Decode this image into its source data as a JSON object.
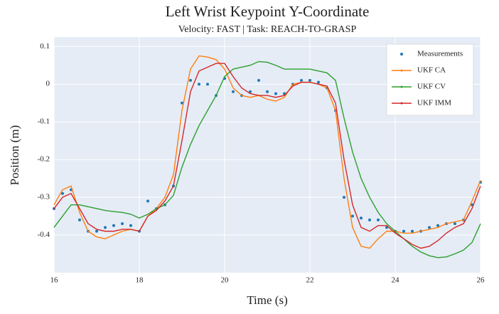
{
  "chart_data": {
    "type": "line",
    "title": "Left Wrist Keypoint Y-Coordinate",
    "subtitle": "Velocity: FAST  |  Task: REACH-TO-GRASP",
    "x_label": "Time (s)",
    "y_label": "Position (m)",
    "x": [
      16.0,
      16.2,
      16.4,
      16.6,
      16.8,
      17.0,
      17.2,
      17.4,
      17.6,
      17.8,
      18.0,
      18.2,
      18.4,
      18.6,
      18.8,
      19.0,
      19.2,
      19.4,
      19.6,
      19.8,
      20.0,
      20.2,
      20.4,
      20.6,
      20.8,
      21.0,
      21.2,
      21.4,
      21.6,
      21.8,
      22.0,
      22.2,
      22.4,
      22.6,
      22.8,
      23.0,
      23.2,
      23.4,
      23.6,
      23.8,
      24.0,
      24.2,
      24.4,
      24.6,
      24.8,
      25.0,
      25.2,
      25.4,
      25.6,
      25.8,
      26.0
    ],
    "series": [
      {
        "name": "Measurements",
        "color": "#1f77b4",
        "mode": "markers",
        "values": [
          -0.33,
          -0.29,
          -0.28,
          -0.36,
          -0.39,
          -0.39,
          -0.38,
          -0.375,
          -0.37,
          -0.375,
          -0.39,
          -0.31,
          -0.33,
          -0.32,
          -0.27,
          -0.05,
          0.01,
          0.0,
          0.0,
          -0.03,
          0.015,
          -0.02,
          -0.03,
          -0.02,
          0.01,
          -0.02,
          -0.025,
          -0.025,
          0.0,
          0.01,
          0.01,
          0.005,
          -0.01,
          -0.07,
          -0.3,
          -0.35,
          -0.355,
          -0.36,
          -0.36,
          -0.38,
          -0.39,
          -0.39,
          -0.39,
          -0.39,
          -0.38,
          -0.375,
          -0.37,
          -0.37,
          -0.36,
          -0.32,
          -0.26
        ]
      },
      {
        "name": "UKF CA",
        "color": "#ff7f0e",
        "mode": "lines",
        "values": [
          -0.32,
          -0.28,
          -0.27,
          -0.34,
          -0.39,
          -0.405,
          -0.41,
          -0.4,
          -0.39,
          -0.385,
          -0.39,
          -0.35,
          -0.33,
          -0.3,
          -0.24,
          -0.07,
          0.04,
          0.075,
          0.072,
          0.065,
          0.04,
          -0.01,
          -0.03,
          -0.035,
          -0.03,
          -0.04,
          -0.045,
          -0.035,
          0.0,
          0.005,
          0.005,
          0.0,
          -0.01,
          -0.07,
          -0.25,
          -0.38,
          -0.43,
          -0.435,
          -0.41,
          -0.39,
          -0.39,
          -0.395,
          -0.395,
          -0.39,
          -0.385,
          -0.38,
          -0.37,
          -0.365,
          -0.36,
          -0.31,
          -0.255
        ]
      },
      {
        "name": "UKF CV",
        "color": "#2ca02c",
        "mode": "lines",
        "values": [
          -0.38,
          -0.35,
          -0.32,
          -0.32,
          -0.325,
          -0.33,
          -0.335,
          -0.338,
          -0.34,
          -0.345,
          -0.355,
          -0.345,
          -0.33,
          -0.32,
          -0.295,
          -0.22,
          -0.16,
          -0.11,
          -0.07,
          -0.03,
          0.02,
          0.04,
          0.045,
          0.05,
          0.06,
          0.058,
          0.05,
          0.04,
          0.04,
          0.04,
          0.04,
          0.035,
          0.03,
          0.01,
          -0.09,
          -0.18,
          -0.25,
          -0.3,
          -0.34,
          -0.37,
          -0.39,
          -0.41,
          -0.43,
          -0.445,
          -0.455,
          -0.46,
          -0.458,
          -0.45,
          -0.44,
          -0.42,
          -0.37
        ]
      },
      {
        "name": "UKF IMM",
        "color": "#d62728",
        "mode": "lines",
        "values": [
          -0.33,
          -0.3,
          -0.29,
          -0.33,
          -0.37,
          -0.385,
          -0.39,
          -0.39,
          -0.385,
          -0.385,
          -0.39,
          -0.35,
          -0.335,
          -0.31,
          -0.27,
          -0.15,
          -0.02,
          0.035,
          0.045,
          0.055,
          0.055,
          0.02,
          -0.01,
          -0.025,
          -0.03,
          -0.03,
          -0.035,
          -0.03,
          -0.005,
          0.005,
          0.005,
          0.0,
          -0.005,
          -0.05,
          -0.2,
          -0.32,
          -0.38,
          -0.39,
          -0.375,
          -0.375,
          -0.395,
          -0.41,
          -0.425,
          -0.435,
          -0.43,
          -0.415,
          -0.395,
          -0.38,
          -0.37,
          -0.33,
          -0.27
        ]
      }
    ],
    "xlim": [
      16,
      26
    ],
    "xticks": [
      16,
      18,
      20,
      22,
      24,
      26
    ],
    "ylim": [
      -0.5,
      0.125
    ],
    "yticks": [
      -0.4,
      -0.3,
      -0.2,
      -0.1,
      0,
      0.1
    ],
    "grid": true,
    "legend": "upper right",
    "background": "#e5ecf6"
  }
}
